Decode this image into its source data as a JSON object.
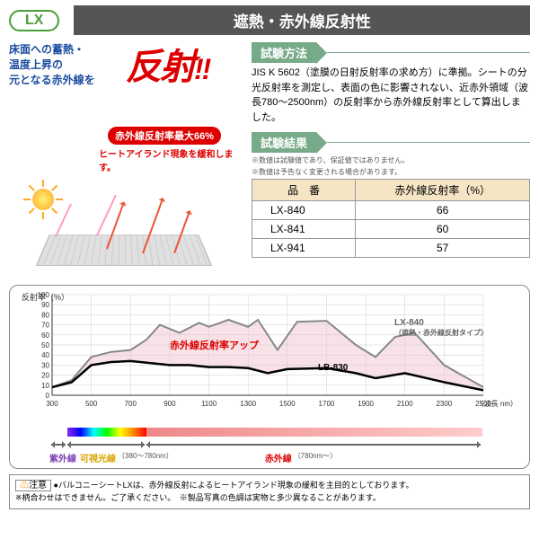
{
  "badge": "LX",
  "title": "遮熱・赤外線反射性",
  "intro_line1": "床面への蓄熱・",
  "intro_line2": "温度上昇の",
  "intro_line3": "元となる赤外線を",
  "reflect": "反射",
  "reflect_excl": "!!",
  "red_callout": "赤外線反射率最大66%",
  "red_note": "ヒートアイランド現象を緩和します。",
  "method_label": "試験方法",
  "method_text": "JIS K 5602（塗膜の日射反射率の求め方）に準拠。シートの分光反射率を測定し、表面の色に影響されない、近赤外領域（波長780～2500nm）の反射率から赤外線反射率として算出しました。",
  "result_label": "試験結果",
  "result_note1": "※数値は試験値であり、保証値ではありません。",
  "result_note2": "※数値は予告なく変更される場合があります。",
  "table": {
    "col1": "品　番",
    "col2": "赤外線反射率（%）",
    "rows": [
      {
        "name": "LX-840",
        "val": "66"
      },
      {
        "name": "LX-841",
        "val": "60"
      },
      {
        "name": "LX-941",
        "val": "57"
      }
    ]
  },
  "chart": {
    "ylabel": "反射率（%）",
    "ylim": [
      0,
      100
    ],
    "xlim": [
      300,
      2500
    ],
    "xticks": [
      300,
      500,
      700,
      900,
      1100,
      1300,
      1500,
      1700,
      1900,
      2100,
      2300,
      2500
    ],
    "yticks": [
      0,
      10,
      20,
      30,
      40,
      50,
      60,
      70,
      80,
      90,
      100
    ],
    "xunit": "（波長 nm）",
    "fill_color": "#f5d5dd",
    "grid_color": "#ccc",
    "series": [
      {
        "name": "LX-840",
        "sub": "（遮熱・赤外線反射タイプ）",
        "color": "#888",
        "width": 2,
        "pts": [
          [
            300,
            8
          ],
          [
            400,
            15
          ],
          [
            500,
            38
          ],
          [
            600,
            43
          ],
          [
            700,
            45
          ],
          [
            780,
            55
          ],
          [
            850,
            70
          ],
          [
            950,
            62
          ],
          [
            1050,
            72
          ],
          [
            1100,
            68
          ],
          [
            1200,
            75
          ],
          [
            1300,
            68
          ],
          [
            1350,
            75
          ],
          [
            1450,
            45
          ],
          [
            1550,
            73
          ],
          [
            1700,
            74
          ],
          [
            1850,
            50
          ],
          [
            1950,
            38
          ],
          [
            2050,
            58
          ],
          [
            2150,
            62
          ],
          [
            2300,
            30
          ],
          [
            2500,
            8
          ]
        ]
      },
      {
        "name": "LB-830",
        "color": "#000",
        "width": 2.5,
        "pts": [
          [
            300,
            8
          ],
          [
            400,
            13
          ],
          [
            500,
            30
          ],
          [
            600,
            33
          ],
          [
            700,
            34
          ],
          [
            800,
            32
          ],
          [
            900,
            30
          ],
          [
            1000,
            30
          ],
          [
            1100,
            28
          ],
          [
            1200,
            28
          ],
          [
            1300,
            27
          ],
          [
            1400,
            22
          ],
          [
            1500,
            26
          ],
          [
            1700,
            27
          ],
          [
            1850,
            22
          ],
          [
            1950,
            17
          ],
          [
            2100,
            22
          ],
          [
            2300,
            13
          ],
          [
            2500,
            5
          ]
        ]
      }
    ],
    "callout": "赤外線反射率アップ",
    "lbl_lx": "LX-840",
    "lbl_lx_sub": "（遮熱・赤外線反射タイプ）",
    "lbl_lb": "LB-830"
  },
  "spectrum": {
    "uv": "紫外線",
    "vis": "可視光線",
    "vis_range": "（380～780nm）",
    "ir": "赤外線",
    "ir_range": "（780nm～）"
  },
  "footer": {
    "warn": "注意",
    "line1": "●バルコニーシートLXは、赤外線反射によるヒートアイランド現象の緩和を主目的としております。",
    "line2": "※柄合わせはできません。ご了承ください。　※製品写真の色調は実物と多少異なることがあります。"
  }
}
